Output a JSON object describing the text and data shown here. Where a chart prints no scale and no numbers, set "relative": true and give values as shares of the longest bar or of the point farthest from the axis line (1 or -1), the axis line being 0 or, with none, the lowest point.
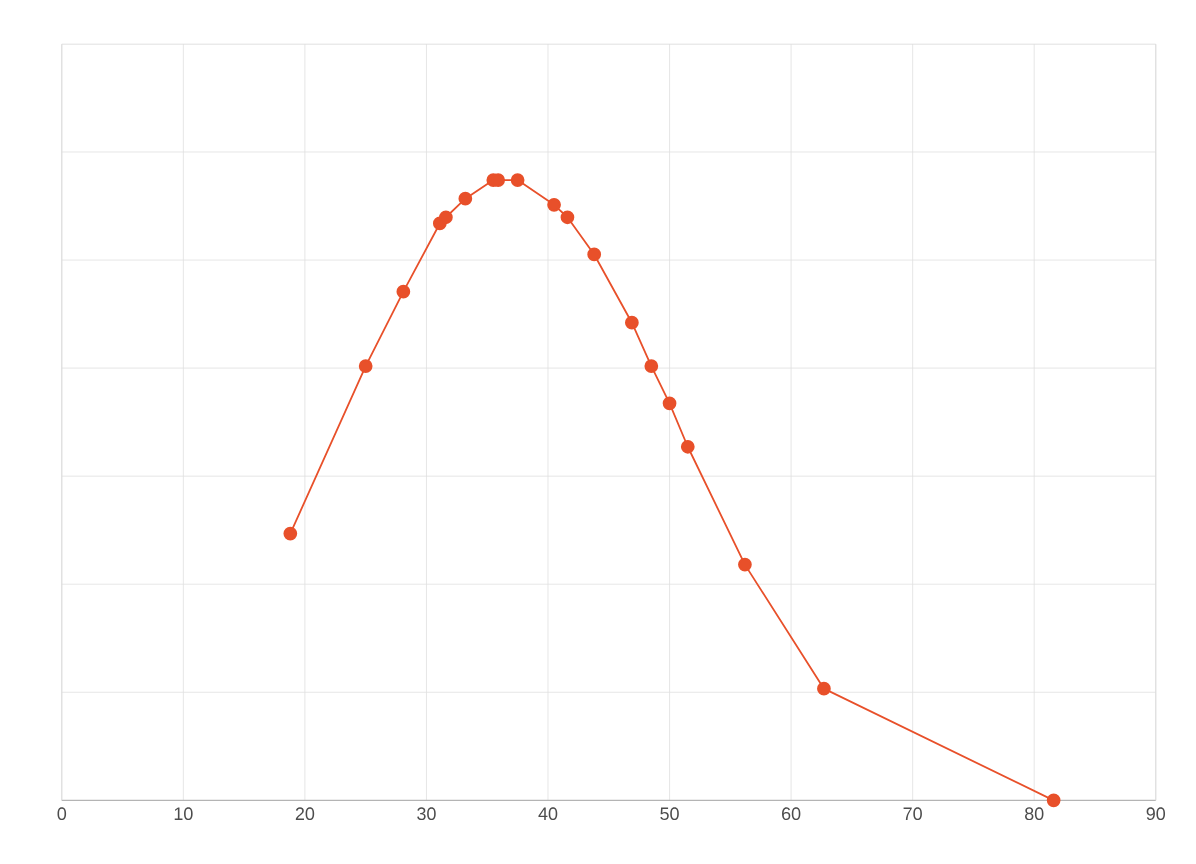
{
  "chart_data": {
    "type": "line",
    "relative": true,
    "color": "#e8502a",
    "marker": "circle",
    "line_style": "solid",
    "grid": true,
    "x": [
      18.8,
      25.0,
      28.1,
      31.1,
      31.6,
      33.2,
      35.5,
      35.9,
      37.5,
      40.5,
      41.6,
      43.8,
      46.9,
      48.5,
      50.0,
      51.5,
      56.2,
      62.7,
      81.6
    ],
    "values": [
      0.43,
      0.7,
      0.82,
      0.93,
      0.94,
      0.97,
      1.0,
      1.0,
      1.0,
      0.96,
      0.94,
      0.88,
      0.77,
      0.7,
      0.64,
      0.57,
      0.38,
      0.18,
      0.0
    ],
    "xlim": [
      0,
      90
    ],
    "xticks": [
      0,
      10,
      20,
      30,
      40,
      50,
      60,
      70,
      80,
      90
    ]
  }
}
